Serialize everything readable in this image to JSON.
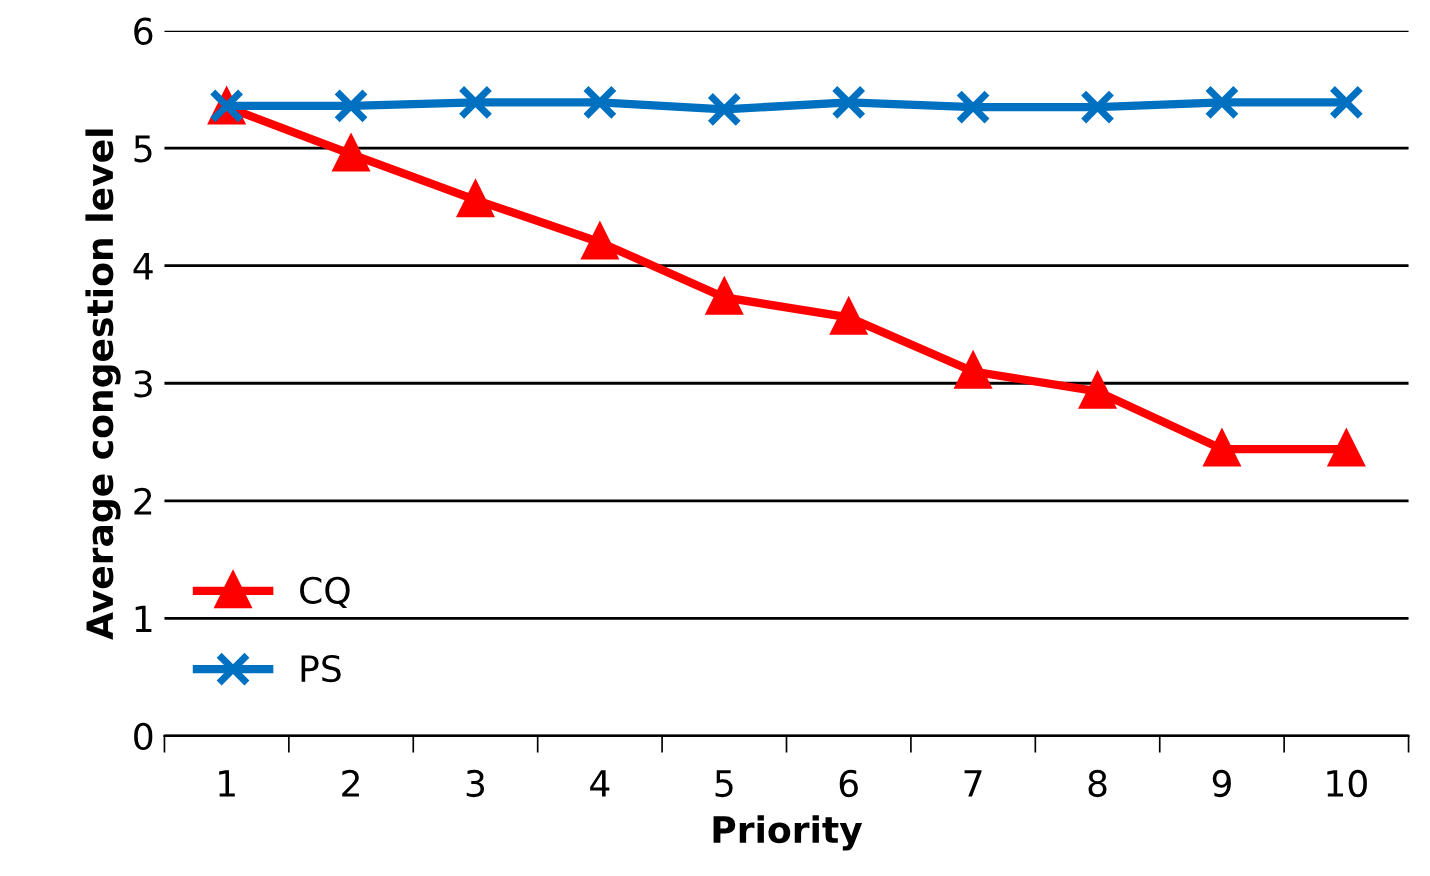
{
  "chart_data": {
    "type": "line",
    "xlabel": "Priority",
    "ylabel": "Average congestion level",
    "categories": [
      "1",
      "2",
      "3",
      "4",
      "5",
      "6",
      "7",
      "8",
      "9",
      "10"
    ],
    "series": [
      {
        "name": "CQ",
        "color": "#ff0000",
        "marker": "triangle",
        "values": [
          5.35,
          4.95,
          4.56,
          4.2,
          3.73,
          3.56,
          3.1,
          2.93,
          2.44,
          2.44
        ]
      },
      {
        "name": "PS",
        "color": "#0070c0",
        "marker": "cross",
        "values": [
          5.36,
          5.36,
          5.39,
          5.39,
          5.33,
          5.39,
          5.35,
          5.35,
          5.39,
          5.39
        ]
      }
    ],
    "ylim": [
      0,
      6
    ],
    "yticks": [
      0,
      1,
      2,
      3,
      4,
      5,
      6
    ],
    "grid": "y",
    "legend": "bottom left",
    "line_style": "solid"
  }
}
